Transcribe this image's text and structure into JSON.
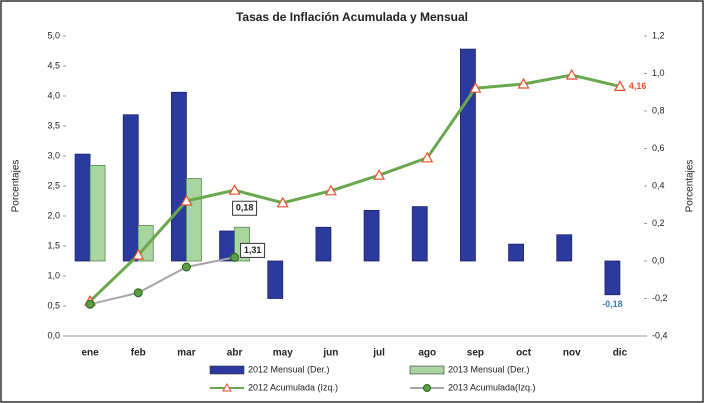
{
  "chart_data": {
    "type": "combo",
    "title": "Tasas de Inflación Acumulada y Mensual",
    "y_label": "Porcentajes",
    "y2_label": "Porcentajes",
    "categories": [
      "ene",
      "feb",
      "mar",
      "abr",
      "may",
      "jun",
      "jul",
      "ago",
      "sep",
      "oct",
      "nov",
      "dic"
    ],
    "ylim": [
      0,
      5
    ],
    "yticks": [
      {
        "value": 0,
        "label": "0,0"
      },
      {
        "value": 0.5,
        "label": "0,5"
      },
      {
        "value": 1,
        "label": "1,0"
      },
      {
        "value": 1.5,
        "label": "1,5"
      },
      {
        "value": 2,
        "label": "2,0"
      },
      {
        "value": 2.5,
        "label": "2,5"
      },
      {
        "value": 3,
        "label": "3,0"
      },
      {
        "value": 3.5,
        "label": "3,5"
      },
      {
        "value": 4,
        "label": "4,0"
      },
      {
        "value": 4.5,
        "label": "4,5"
      },
      {
        "value": 5,
        "label": "5,0"
      }
    ],
    "y2lim": [
      -0.4,
      1.2
    ],
    "y2ticks": [
      {
        "value": -0.4,
        "label": "-0,4"
      },
      {
        "value": -0.2,
        "label": "-0,2"
      },
      {
        "value": 0,
        "label": "0,0"
      },
      {
        "value": 0.2,
        "label": "0,2"
      },
      {
        "value": 0.4,
        "label": "0,4"
      },
      {
        "value": 0.6,
        "label": "0,6"
      },
      {
        "value": 0.8,
        "label": "0,8"
      },
      {
        "value": 1,
        "label": "1,0"
      },
      {
        "value": 1.2,
        "label": "1,2"
      }
    ],
    "series": [
      {
        "name": "2012 Mensual (Der.)",
        "type": "bar",
        "axis": "y2",
        "color": "#2b3a9c",
        "values": [
          0.57,
          0.78,
          0.9,
          0.16,
          -0.2,
          0.18,
          0.27,
          0.29,
          1.13,
          0.09,
          0.14,
          -0.18
        ],
        "value_labels": [
          null,
          null,
          null,
          null,
          null,
          null,
          null,
          null,
          null,
          null,
          null,
          "-0,18"
        ]
      },
      {
        "name": "2013 Mensual (Der.)",
        "type": "bar",
        "axis": "y2",
        "color": "#a8d5a0",
        "values": [
          0.51,
          0.19,
          0.44,
          0.18,
          null,
          null,
          null,
          null,
          null,
          null,
          null,
          null
        ],
        "value_labels": [
          null,
          null,
          null,
          "0,18",
          null,
          null,
          null,
          null,
          null,
          null,
          null,
          null
        ]
      },
      {
        "name": "2012 Acumulada (Izq.)",
        "type": "line",
        "axis": "y",
        "color": "#6aa84f",
        "marker_color": "#e8502a",
        "values": [
          0.58,
          1.35,
          2.25,
          2.43,
          2.22,
          2.42,
          2.68,
          2.97,
          4.13,
          4.2,
          4.35,
          4.16
        ],
        "value_labels": [
          null,
          null,
          null,
          null,
          null,
          null,
          null,
          null,
          null,
          null,
          null,
          "4,16"
        ]
      },
      {
        "name": "2013 Acumulada(Izq.)",
        "type": "line",
        "axis": "y",
        "color": "#a6a6a6",
        "marker_color": "#5aa043",
        "values": [
          0.53,
          0.72,
          1.15,
          1.31,
          null,
          null,
          null,
          null,
          null,
          null,
          null,
          null
        ],
        "value_labels": [
          null,
          null,
          null,
          "1,31",
          null,
          null,
          null,
          null,
          null,
          null,
          null,
          null
        ]
      }
    ]
  }
}
